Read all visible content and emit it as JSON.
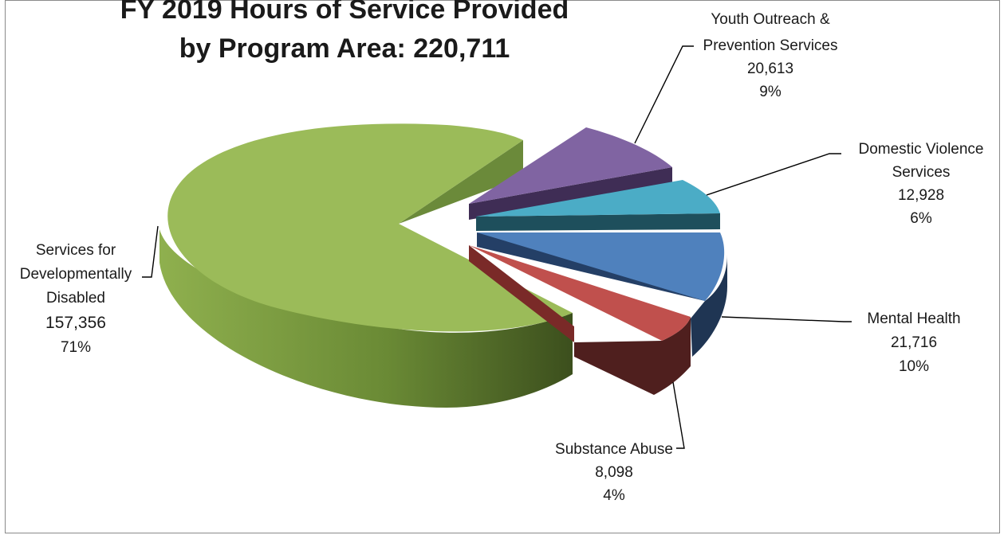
{
  "chart_data": {
    "type": "pie",
    "title_lines": [
      "FY 2019 Hours of Service Provided",
      "by Program Area:  220,711"
    ],
    "total": 220711,
    "slices": [
      {
        "key": "dd",
        "label_lines": [
          "Services  for",
          "Developmentally",
          "Disabled"
        ],
        "value": 157356,
        "value_text": "157,356",
        "percent_text": "71%",
        "color": "#9BBB59"
      },
      {
        "key": "yo",
        "label_lines": [
          "Youth Outreach &",
          "Prevention Services"
        ],
        "value": 20613,
        "value_text": "20,613",
        "percent_text": "9%",
        "color": "#8064A2"
      },
      {
        "key": "dv",
        "label_lines": [
          "Domestic Violence",
          "Services"
        ],
        "value": 12928,
        "value_text": "12,928",
        "percent_text": "6%",
        "color": "#4BACC6"
      },
      {
        "key": "mh",
        "label_lines": [
          "Mental Health"
        ],
        "value": 21716,
        "value_text": "21,716",
        "percent_text": "10%",
        "color": "#4F81BD"
      },
      {
        "key": "sa",
        "label_lines": [
          "Substance Abuse"
        ],
        "value": 8098,
        "value_text": "8,098",
        "percent_text": "4%",
        "color": "#C0504D"
      }
    ]
  }
}
